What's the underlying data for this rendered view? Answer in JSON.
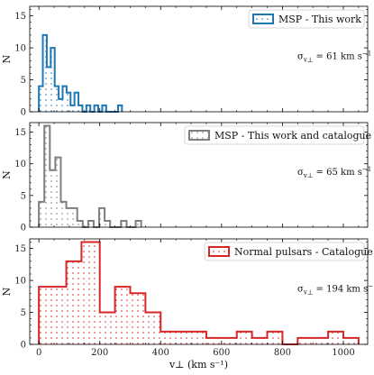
{
  "chart_data": [
    {
      "type": "histogram",
      "panel": "top",
      "ylabel": "N",
      "xlabel": "",
      "xlim": [
        -30,
        1080
      ],
      "ylim": [
        0,
        16.5
      ],
      "yticks": [
        0,
        5,
        10,
        15
      ],
      "xticks": [
        0,
        200,
        400,
        600,
        800,
        1000
      ],
      "show_xtick_labels": false,
      "color": "#1f77b4",
      "legend": "MSP - This work",
      "annotation": {
        "sigma": "σ",
        "sub": "v⊥",
        "text": " = 61 km s",
        "sup": "−1"
      },
      "bins": [
        {
          "x0": 0,
          "x1": 13,
          "count": 4
        },
        {
          "x0": 13,
          "x1": 26,
          "count": 12
        },
        {
          "x0": 26,
          "x1": 39,
          "count": 7
        },
        {
          "x0": 39,
          "x1": 52,
          "count": 10
        },
        {
          "x0": 52,
          "x1": 65,
          "count": 4
        },
        {
          "x0": 65,
          "x1": 78,
          "count": 2
        },
        {
          "x0": 78,
          "x1": 91,
          "count": 4
        },
        {
          "x0": 91,
          "x1": 104,
          "count": 3
        },
        {
          "x0": 104,
          "x1": 117,
          "count": 1
        },
        {
          "x0": 117,
          "x1": 130,
          "count": 3
        },
        {
          "x0": 130,
          "x1": 143,
          "count": 1
        },
        {
          "x0": 143,
          "x1": 156,
          "count": 0
        },
        {
          "x0": 156,
          "x1": 169,
          "count": 1
        },
        {
          "x0": 169,
          "x1": 182,
          "count": 0
        },
        {
          "x0": 182,
          "x1": 195,
          "count": 1
        },
        {
          "x0": 195,
          "x1": 208,
          "count": 0
        },
        {
          "x0": 208,
          "x1": 221,
          "count": 1
        },
        {
          "x0": 221,
          "x1": 260,
          "count": 0
        },
        {
          "x0": 260,
          "x1": 273,
          "count": 1
        }
      ]
    },
    {
      "type": "histogram",
      "panel": "middle",
      "ylabel": "N",
      "xlabel": "",
      "xlim": [
        -30,
        1080
      ],
      "ylim": [
        0,
        16.5
      ],
      "yticks": [
        0,
        5,
        10,
        15
      ],
      "xticks": [
        0,
        200,
        400,
        600,
        800,
        1000
      ],
      "show_xtick_labels": false,
      "color": "#7f7f7f",
      "legend": "MSP - This work and catalogue",
      "annotation": {
        "sigma": "σ",
        "sub": "v⊥",
        "text": " = 65 km s",
        "sup": "−1"
      },
      "bins": [
        {
          "x0": 0,
          "x1": 18,
          "count": 4
        },
        {
          "x0": 18,
          "x1": 36,
          "count": 16
        },
        {
          "x0": 36,
          "x1": 54,
          "count": 9
        },
        {
          "x0": 54,
          "x1": 72,
          "count": 11
        },
        {
          "x0": 72,
          "x1": 90,
          "count": 4
        },
        {
          "x0": 90,
          "x1": 108,
          "count": 3
        },
        {
          "x0": 108,
          "x1": 126,
          "count": 3
        },
        {
          "x0": 126,
          "x1": 144,
          "count": 1
        },
        {
          "x0": 144,
          "x1": 162,
          "count": 0
        },
        {
          "x0": 162,
          "x1": 180,
          "count": 1
        },
        {
          "x0": 180,
          "x1": 198,
          "count": 0
        },
        {
          "x0": 198,
          "x1": 216,
          "count": 3
        },
        {
          "x0": 216,
          "x1": 234,
          "count": 1
        },
        {
          "x0": 234,
          "x1": 270,
          "count": 0
        },
        {
          "x0": 270,
          "x1": 288,
          "count": 1
        },
        {
          "x0": 288,
          "x1": 318,
          "count": 0
        },
        {
          "x0": 318,
          "x1": 336,
          "count": 1
        }
      ]
    },
    {
      "type": "histogram",
      "panel": "bottom",
      "ylabel": "N",
      "xlabel": "v⊥ (km s⁻¹)",
      "xlim": [
        -30,
        1080
      ],
      "ylim": [
        0,
        16.5
      ],
      "yticks": [
        0,
        5,
        10,
        15
      ],
      "xticks": [
        0,
        200,
        400,
        600,
        800,
        1000
      ],
      "show_xtick_labels": true,
      "color": "#d62728",
      "legend": "Normal pulsars - Catalogue",
      "annotation": {
        "sigma": "σ",
        "sub": "v⊥",
        "text": " = 194 km s",
        "sup": "−1"
      },
      "bins": [
        {
          "x0": 0,
          "x1": 90,
          "count": 9
        },
        {
          "x0": 90,
          "x1": 140,
          "count": 13
        },
        {
          "x0": 140,
          "x1": 200,
          "count": 16
        },
        {
          "x0": 200,
          "x1": 250,
          "count": 5
        },
        {
          "x0": 250,
          "x1": 300,
          "count": 9
        },
        {
          "x0": 300,
          "x1": 350,
          "count": 8
        },
        {
          "x0": 350,
          "x1": 400,
          "count": 5
        },
        {
          "x0": 400,
          "x1": 550,
          "count": 2
        },
        {
          "x0": 550,
          "x1": 650,
          "count": 1
        },
        {
          "x0": 650,
          "x1": 700,
          "count": 2
        },
        {
          "x0": 700,
          "x1": 750,
          "count": 1
        },
        {
          "x0": 750,
          "x1": 800,
          "count": 2
        },
        {
          "x0": 800,
          "x1": 850,
          "count": 0
        },
        {
          "x0": 850,
          "x1": 950,
          "count": 1
        },
        {
          "x0": 950,
          "x1": 1000,
          "count": 2
        },
        {
          "x0": 1000,
          "x1": 1050,
          "count": 1
        }
      ]
    }
  ]
}
